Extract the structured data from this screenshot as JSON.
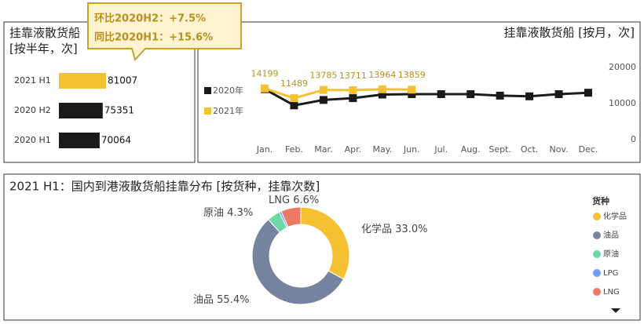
{
  "chart_data": [
    {
      "type": "hbar",
      "title": "挂靠液散货船 [按半年，次]",
      "categories": [
        "2021 H1",
        "2020 H2",
        "2020 H1"
      ],
      "values": [
        81007,
        75351,
        70064
      ],
      "colors": [
        "#f5c132",
        "#1a1a1a",
        "#1a1a1a"
      ],
      "annotations": [
        "环比2020H2：+7.5%",
        "同比2020H1：+15.6%"
      ]
    },
    {
      "type": "line",
      "title": "挂靠液散货船 [按月，次]",
      "categories": [
        "Jan.",
        "Feb.",
        "Mar.",
        "Apr.",
        "May.",
        "Jun.",
        "Jul.",
        "Aug.",
        "Sept.",
        "Oct.",
        "Nov.",
        "Dec."
      ],
      "series": [
        {
          "name": "2020年",
          "color": "#1a1a1a",
          "values": [
            14000,
            9500,
            11000,
            11500,
            12500,
            12600,
            12600,
            12600,
            12200,
            12000,
            12600,
            13000
          ]
        },
        {
          "name": "2021年",
          "color": "#f5c132",
          "values": [
            14199,
            11489,
            13785,
            13711,
            13964,
            13859,
            null,
            null,
            null,
            null,
            null,
            null
          ]
        }
      ],
      "ylim": [
        0,
        20000
      ],
      "yticks": [
        0,
        10000,
        20000
      ]
    },
    {
      "type": "donut",
      "title": "2021 H1：国内到港液散货船挂靠分布 [按货种，挂靠次数]",
      "legend_title": "货种",
      "categories": [
        "化学品",
        "油品",
        "原油",
        "LPG",
        "LNG"
      ],
      "values": [
        33.0,
        55.4,
        4.3,
        0.7,
        6.6
      ],
      "value_labels": [
        "33.0%",
        "55.4%",
        "4.3%",
        null,
        "6.6%"
      ],
      "colors": [
        "#f5c132",
        "#76839f",
        "#6fd6a8",
        "#6d9cf2",
        "#ec7a63"
      ]
    }
  ]
}
